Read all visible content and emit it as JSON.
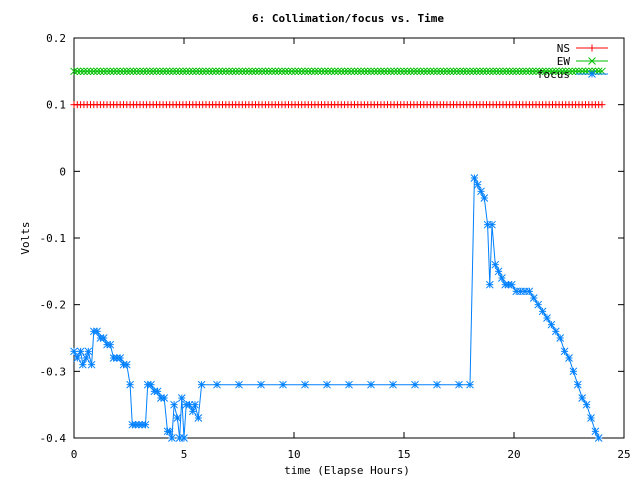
{
  "chart_data": {
    "type": "line",
    "title": "6: Collimation/focus vs. Time",
    "xlabel": "time (Elapse Hours)",
    "ylabel": "Volts",
    "xlim": [
      0,
      25
    ],
    "ylim": [
      -0.4,
      0.2
    ],
    "xticks": [
      "0",
      "5",
      "10",
      "15",
      "20",
      "25"
    ],
    "yticks": [
      "0.2",
      "0.1",
      "0",
      "-0.1",
      "-0.2",
      "-0.3",
      "-0.4"
    ],
    "grid": false,
    "legend_position": "top-right",
    "series": [
      {
        "name": "NS",
        "color": "#ff0000",
        "marker": "plus",
        "x": [
          0,
          24
        ],
        "constant": 0.1
      },
      {
        "name": "EW",
        "color": "#00c000",
        "marker": "cross",
        "x": [
          0,
          24
        ],
        "constant": 0.15
      },
      {
        "name": "focus",
        "color": "#0080ff",
        "marker": "star",
        "points": [
          [
            0.0,
            -0.27
          ],
          [
            0.15,
            -0.28
          ],
          [
            0.3,
            -0.27
          ],
          [
            0.4,
            -0.29
          ],
          [
            0.55,
            -0.28
          ],
          [
            0.65,
            -0.27
          ],
          [
            0.8,
            -0.29
          ],
          [
            0.9,
            -0.24
          ],
          [
            1.05,
            -0.24
          ],
          [
            1.2,
            -0.25
          ],
          [
            1.35,
            -0.25
          ],
          [
            1.5,
            -0.26
          ],
          [
            1.65,
            -0.26
          ],
          [
            1.8,
            -0.28
          ],
          [
            1.95,
            -0.28
          ],
          [
            2.1,
            -0.28
          ],
          [
            2.25,
            -0.29
          ],
          [
            2.4,
            -0.29
          ],
          [
            2.55,
            -0.32
          ],
          [
            2.65,
            -0.38
          ],
          [
            2.8,
            -0.38
          ],
          [
            2.95,
            -0.38
          ],
          [
            3.1,
            -0.38
          ],
          [
            3.25,
            -0.38
          ],
          [
            3.35,
            -0.32
          ],
          [
            3.5,
            -0.32
          ],
          [
            3.65,
            -0.33
          ],
          [
            3.8,
            -0.33
          ],
          [
            3.95,
            -0.34
          ],
          [
            4.1,
            -0.34
          ],
          [
            4.25,
            -0.39
          ],
          [
            4.35,
            -0.39
          ],
          [
            4.45,
            -0.4
          ],
          [
            4.55,
            -0.35
          ],
          [
            4.7,
            -0.37
          ],
          [
            4.8,
            -0.4
          ],
          [
            4.9,
            -0.34
          ],
          [
            5.0,
            -0.4
          ],
          [
            5.1,
            -0.35
          ],
          [
            5.25,
            -0.35
          ],
          [
            5.4,
            -0.36
          ],
          [
            5.5,
            -0.35
          ],
          [
            5.65,
            -0.37
          ],
          [
            5.8,
            -0.32
          ],
          [
            6.5,
            -0.32
          ],
          [
            7.5,
            -0.32
          ],
          [
            8.5,
            -0.32
          ],
          [
            9.5,
            -0.32
          ],
          [
            10.5,
            -0.32
          ],
          [
            11.5,
            -0.32
          ],
          [
            12.5,
            -0.32
          ],
          [
            13.5,
            -0.32
          ],
          [
            14.5,
            -0.32
          ],
          [
            15.5,
            -0.32
          ],
          [
            16.5,
            -0.32
          ],
          [
            17.5,
            -0.32
          ],
          [
            18.0,
            -0.32
          ],
          [
            18.2,
            -0.01
          ],
          [
            18.35,
            -0.02
          ],
          [
            18.5,
            -0.03
          ],
          [
            18.65,
            -0.04
          ],
          [
            18.8,
            -0.08
          ],
          [
            18.9,
            -0.17
          ],
          [
            19.0,
            -0.08
          ],
          [
            19.15,
            -0.14
          ],
          [
            19.3,
            -0.15
          ],
          [
            19.45,
            -0.16
          ],
          [
            19.6,
            -0.17
          ],
          [
            19.75,
            -0.17
          ],
          [
            19.9,
            -0.17
          ],
          [
            20.1,
            -0.18
          ],
          [
            20.3,
            -0.18
          ],
          [
            20.5,
            -0.18
          ],
          [
            20.7,
            -0.18
          ],
          [
            20.9,
            -0.19
          ],
          [
            21.1,
            -0.2
          ],
          [
            21.3,
            -0.21
          ],
          [
            21.5,
            -0.22
          ],
          [
            21.7,
            -0.23
          ],
          [
            21.9,
            -0.24
          ],
          [
            22.1,
            -0.25
          ],
          [
            22.3,
            -0.27
          ],
          [
            22.5,
            -0.28
          ],
          [
            22.7,
            -0.3
          ],
          [
            22.9,
            -0.32
          ],
          [
            23.1,
            -0.34
          ],
          [
            23.3,
            -0.35
          ],
          [
            23.5,
            -0.37
          ],
          [
            23.7,
            -0.39
          ],
          [
            23.85,
            -0.4
          ]
        ]
      }
    ]
  }
}
